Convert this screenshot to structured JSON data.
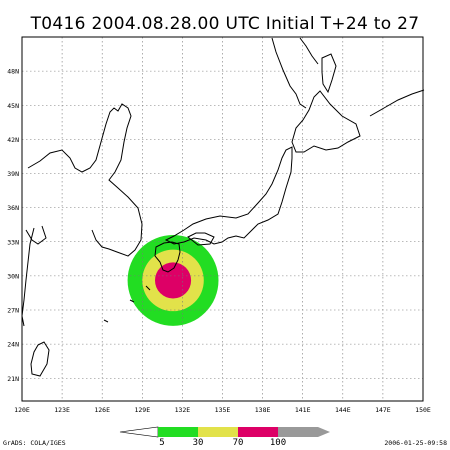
{
  "header": {
    "title": "T0416 2004.08.28.00 UTC Initial T+24 to 27"
  },
  "map": {
    "lon_range": [
      120,
      150
    ],
    "lat_range": [
      19,
      51
    ],
    "lon_ticks": [
      {
        "value": 120,
        "label": "120E"
      },
      {
        "value": 123,
        "label": "123E"
      },
      {
        "value": 126,
        "label": "126E"
      },
      {
        "value": 129,
        "label": "129E"
      },
      {
        "value": 132,
        "label": "132E"
      },
      {
        "value": 135,
        "label": "135E"
      },
      {
        "value": 138,
        "label": "138E"
      },
      {
        "value": 141,
        "label": "141E"
      },
      {
        "value": 144,
        "label": "144E"
      },
      {
        "value": 147,
        "label": "147E"
      },
      {
        "value": 150,
        "label": "150E"
      }
    ],
    "lat_ticks": [
      {
        "value": 21,
        "label": "21N"
      },
      {
        "value": 24,
        "label": "24N"
      },
      {
        "value": 27,
        "label": "27N"
      },
      {
        "value": 30,
        "label": "30N"
      },
      {
        "value": 33,
        "label": "33N"
      },
      {
        "value": 36,
        "label": "36N"
      },
      {
        "value": 39,
        "label": "39N"
      },
      {
        "value": 42,
        "label": "42N"
      },
      {
        "value": 45,
        "label": "45N"
      },
      {
        "value": 48,
        "label": "48N"
      }
    ],
    "grid": true,
    "probability_rings": [
      {
        "level": 5,
        "color": "#22dd22",
        "radius_deg": 3.4
      },
      {
        "level": 30,
        "color": "#e2e24a",
        "radius_deg": 2.3
      },
      {
        "level": 70,
        "color": "#dd0066",
        "radius_deg": 1.35
      }
    ],
    "center": {
      "lon": 131.3,
      "lat": 29.6
    }
  },
  "legend": {
    "labels": [
      "5",
      "30",
      "70",
      "100"
    ],
    "colors": [
      "#22dd22",
      "#e2e24a",
      "#dd0066",
      "#999999"
    ]
  },
  "footer": {
    "credit": "GrADS: COLA/IGES",
    "timestamp": "2006-01-25-09:58"
  }
}
